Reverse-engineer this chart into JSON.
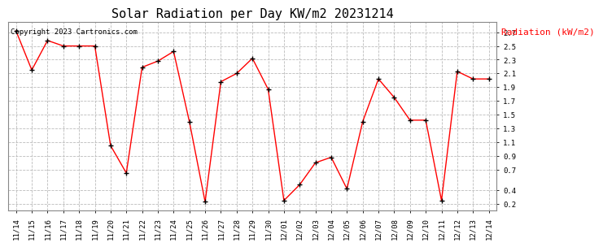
{
  "title": "Solar Radiation per Day KW/m2 20231214",
  "copyright_text": "Copyright 2023 Cartronics.com",
  "legend_label": "Radiation (kW/m2)",
  "dates": [
    "11/14",
    "11/15",
    "11/16",
    "11/17",
    "11/18",
    "11/19",
    "11/20",
    "11/21",
    "11/22",
    "11/23",
    "11/24",
    "11/25",
    "11/26",
    "11/27",
    "11/28",
    "11/29",
    "11/30",
    "12/01",
    "12/02",
    "12/03",
    "12/04",
    "12/05",
    "12/06",
    "12/07",
    "12/08",
    "12/09",
    "12/10",
    "12/11",
    "12/12",
    "12/13",
    "12/14"
  ],
  "values": [
    2.72,
    2.15,
    2.58,
    2.5,
    2.5,
    2.5,
    1.05,
    0.65,
    2.19,
    2.28,
    2.42,
    1.4,
    0.23,
    1.98,
    2.1,
    2.32,
    1.87,
    0.25,
    0.48,
    0.8,
    0.88,
    0.42,
    1.4,
    2.02,
    1.75,
    1.42,
    1.42,
    0.25,
    2.13,
    2.02,
    2.02
  ],
  "ylim": [
    0.1,
    2.85
  ],
  "yticks": [
    0.2,
    0.4,
    0.7,
    0.9,
    1.1,
    1.3,
    1.5,
    1.7,
    1.9,
    2.1,
    2.3,
    2.5,
    2.7
  ],
  "line_color": "red",
  "marker_color": "black",
  "title_fontsize": 11,
  "copyright_fontsize": 6.5,
  "legend_fontsize": 8,
  "tick_fontsize": 6.5,
  "bg_color": "white",
  "grid_color": "#bbbbbb"
}
